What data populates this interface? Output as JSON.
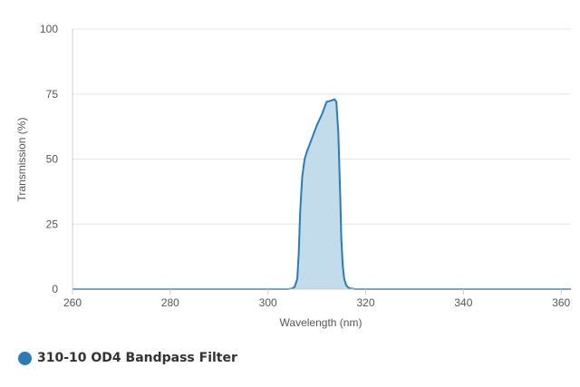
{
  "chart_data": {
    "type": "area",
    "xlabel": "Wavelength (nm)",
    "ylabel": "Transmission (%)",
    "xlim": [
      260,
      362
    ],
    "ylim": [
      0,
      100
    ],
    "x_ticks": [
      260,
      280,
      300,
      320,
      340,
      360
    ],
    "y_ticks": [
      0,
      25,
      50,
      75,
      100
    ],
    "grid": "horizontal",
    "legend_position": "bottom-left",
    "series": [
      {
        "name": "310-10 OD4 Bandpass Filter",
        "color": "#2d7bb6",
        "fill": "#c3dcec",
        "x": [
          260,
          304,
          305,
          305.5,
          306,
          306.3,
          306.6,
          307,
          307.5,
          308,
          309,
          310,
          311,
          312,
          313,
          313.6,
          314,
          314.4,
          314.8,
          315,
          315.3,
          315.6,
          316,
          316.5,
          317,
          318,
          320,
          362
        ],
        "y": [
          0,
          0,
          0.2,
          1,
          4,
          14,
          30,
          43,
          50,
          53,
          58,
          63,
          67,
          72,
          72.5,
          73,
          72,
          60,
          35,
          20,
          9,
          4,
          1.5,
          0.5,
          0.2,
          0,
          0,
          0
        ]
      }
    ]
  }
}
